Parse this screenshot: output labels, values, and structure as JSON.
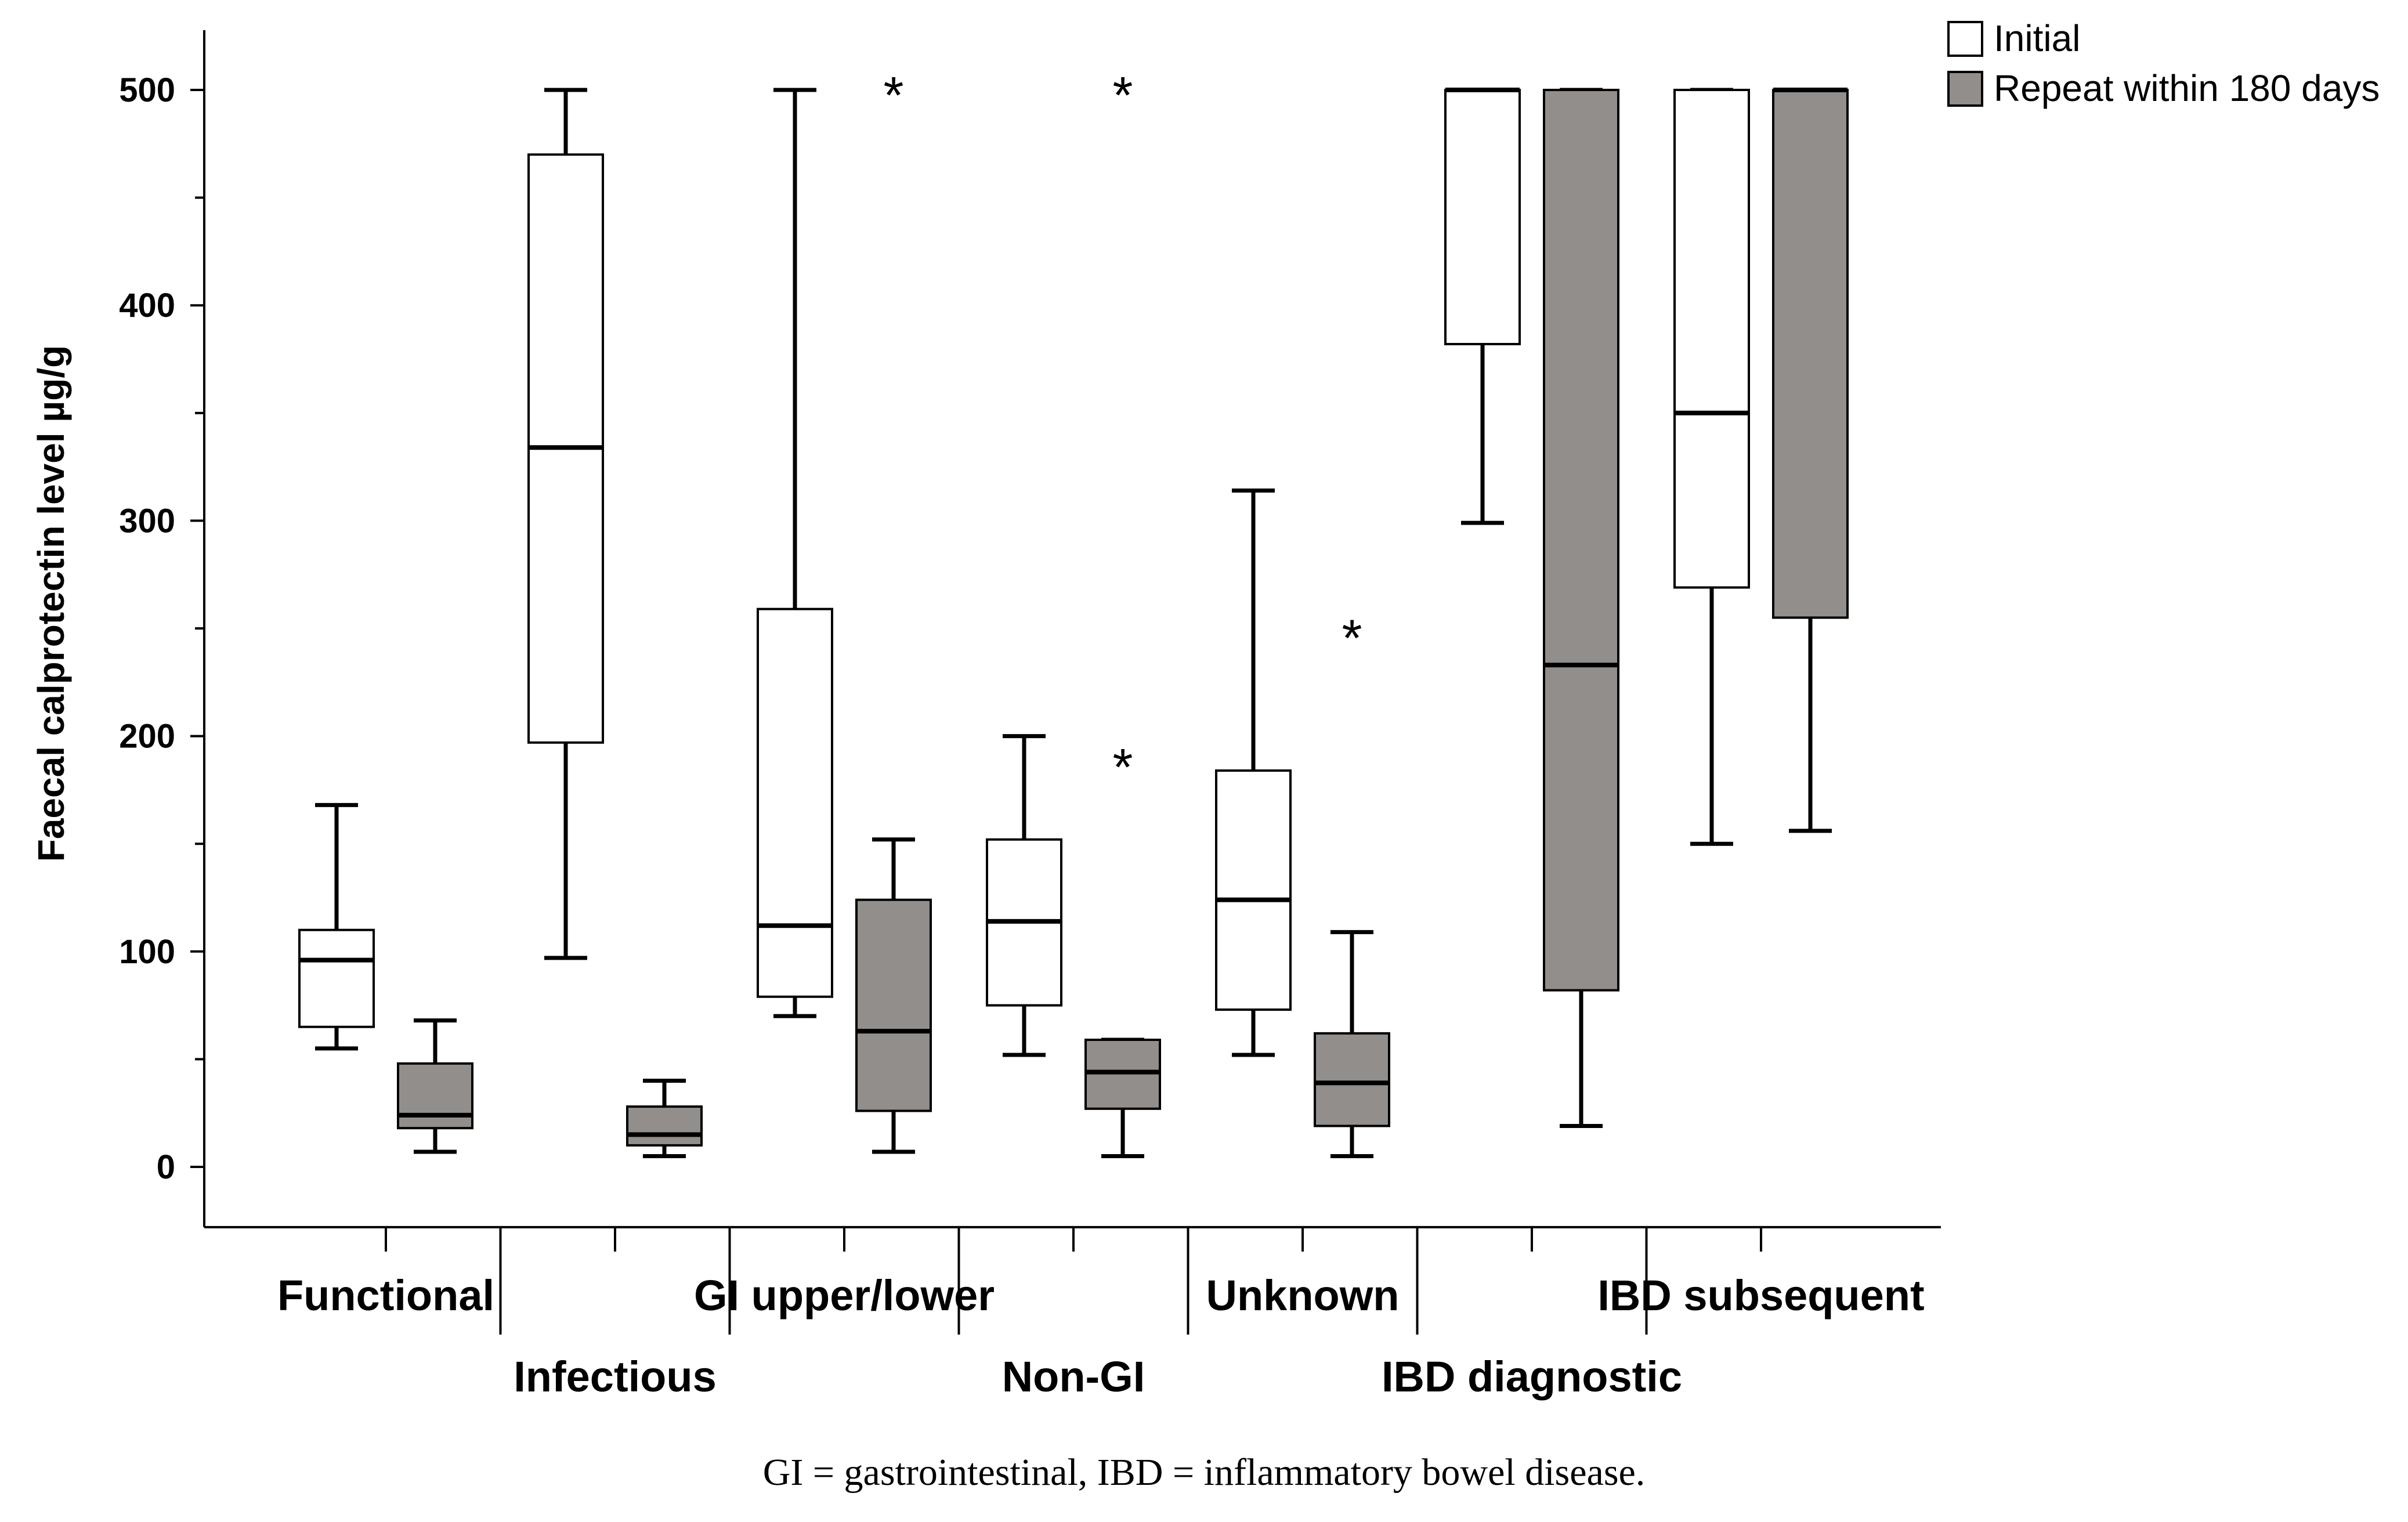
{
  "chart_data": {
    "type": "boxplot",
    "title": "",
    "xlabel": "",
    "ylabel": "Faecal calprotectin level µg/g",
    "ylim": [
      -28,
      540
    ],
    "yticks": [
      0,
      100,
      200,
      300,
      400,
      500
    ],
    "yticks_labels": [
      "0",
      "100",
      "200",
      "300",
      "400",
      "500"
    ],
    "grid": false,
    "legend_position": "top-right",
    "legend": [
      {
        "name": "Initial",
        "color": "#ffffff"
      },
      {
        "name": "Repeat within 180 days",
        "color": "#918e8c"
      }
    ],
    "categories": [
      "Functional",
      "Infectious",
      "GI upper/lower",
      "Non-GI",
      "Unknown",
      "IBD diagnostic",
      "IBD subsequent"
    ],
    "series": [
      {
        "name": "Initial",
        "color": "#ffffff",
        "boxes": [
          {
            "category": "Functional",
            "whisker_low": 55,
            "q1": 65,
            "median": 96,
            "q3": 110,
            "whisker_high": 168
          },
          {
            "category": "Infectious",
            "whisker_low": 97,
            "q1": 197,
            "median": 334,
            "q3": 470,
            "whisker_high": 500
          },
          {
            "category": "GI upper/lower",
            "whisker_low": 70,
            "q1": 79,
            "median": 112,
            "q3": 259,
            "whisker_high": 500
          },
          {
            "category": "Non-GI",
            "whisker_low": 52,
            "q1": 75,
            "median": 114,
            "q3": 152,
            "whisker_high": 200
          },
          {
            "category": "Unknown",
            "whisker_low": 52,
            "q1": 73,
            "median": 124,
            "q3": 184,
            "whisker_high": 314
          },
          {
            "category": "IBD diagnostic",
            "whisker_low": 299,
            "q1": 382,
            "median": 500,
            "q3": 500,
            "whisker_high": 500
          },
          {
            "category": "IBD subsequent",
            "whisker_low": 150,
            "q1": 269,
            "median": 350,
            "q3": 500,
            "whisker_high": 500
          }
        ]
      },
      {
        "name": "Repeat within 180 days",
        "color": "#918e8c",
        "boxes": [
          {
            "category": "Functional",
            "whisker_low": 7,
            "q1": 18,
            "median": 24,
            "q3": 48,
            "whisker_high": 68
          },
          {
            "category": "Infectious",
            "whisker_low": 5,
            "q1": 10,
            "median": 15,
            "q3": 28,
            "whisker_high": 40
          },
          {
            "category": "GI upper/lower",
            "whisker_low": 7,
            "q1": 26,
            "median": 63,
            "q3": 124,
            "whisker_high": 152
          },
          {
            "category": "Non-GI",
            "whisker_low": 5,
            "q1": 27,
            "median": 44,
            "q3": 59,
            "whisker_high": 59
          },
          {
            "category": "Unknown",
            "whisker_low": 5,
            "q1": 19,
            "median": 39,
            "q3": 62,
            "whisker_high": 109
          },
          {
            "category": "IBD diagnostic",
            "whisker_low": 19,
            "q1": 82,
            "median": 233,
            "q3": 500,
            "whisker_high": 500
          },
          {
            "category": "IBD subsequent",
            "whisker_low": 156,
            "q1": 255,
            "median": 500,
            "q3": 500,
            "whisker_high": 500
          }
        ]
      }
    ],
    "outliers": [
      {
        "category": "GI upper/lower",
        "series": "Repeat within 180 days",
        "value": 500,
        "symbol": "*"
      },
      {
        "category": "Non-GI",
        "series": "Repeat within 180 days",
        "value": 500,
        "symbol": "*"
      },
      {
        "category": "Non-GI",
        "series": "Repeat within 180 days",
        "value": 188,
        "symbol": "*"
      },
      {
        "category": "Unknown",
        "series": "Repeat within 180 days",
        "value": 248,
        "symbol": "*"
      }
    ]
  },
  "caption": "GI = gastrointestinal, IBD = inflammatory bowel disease."
}
